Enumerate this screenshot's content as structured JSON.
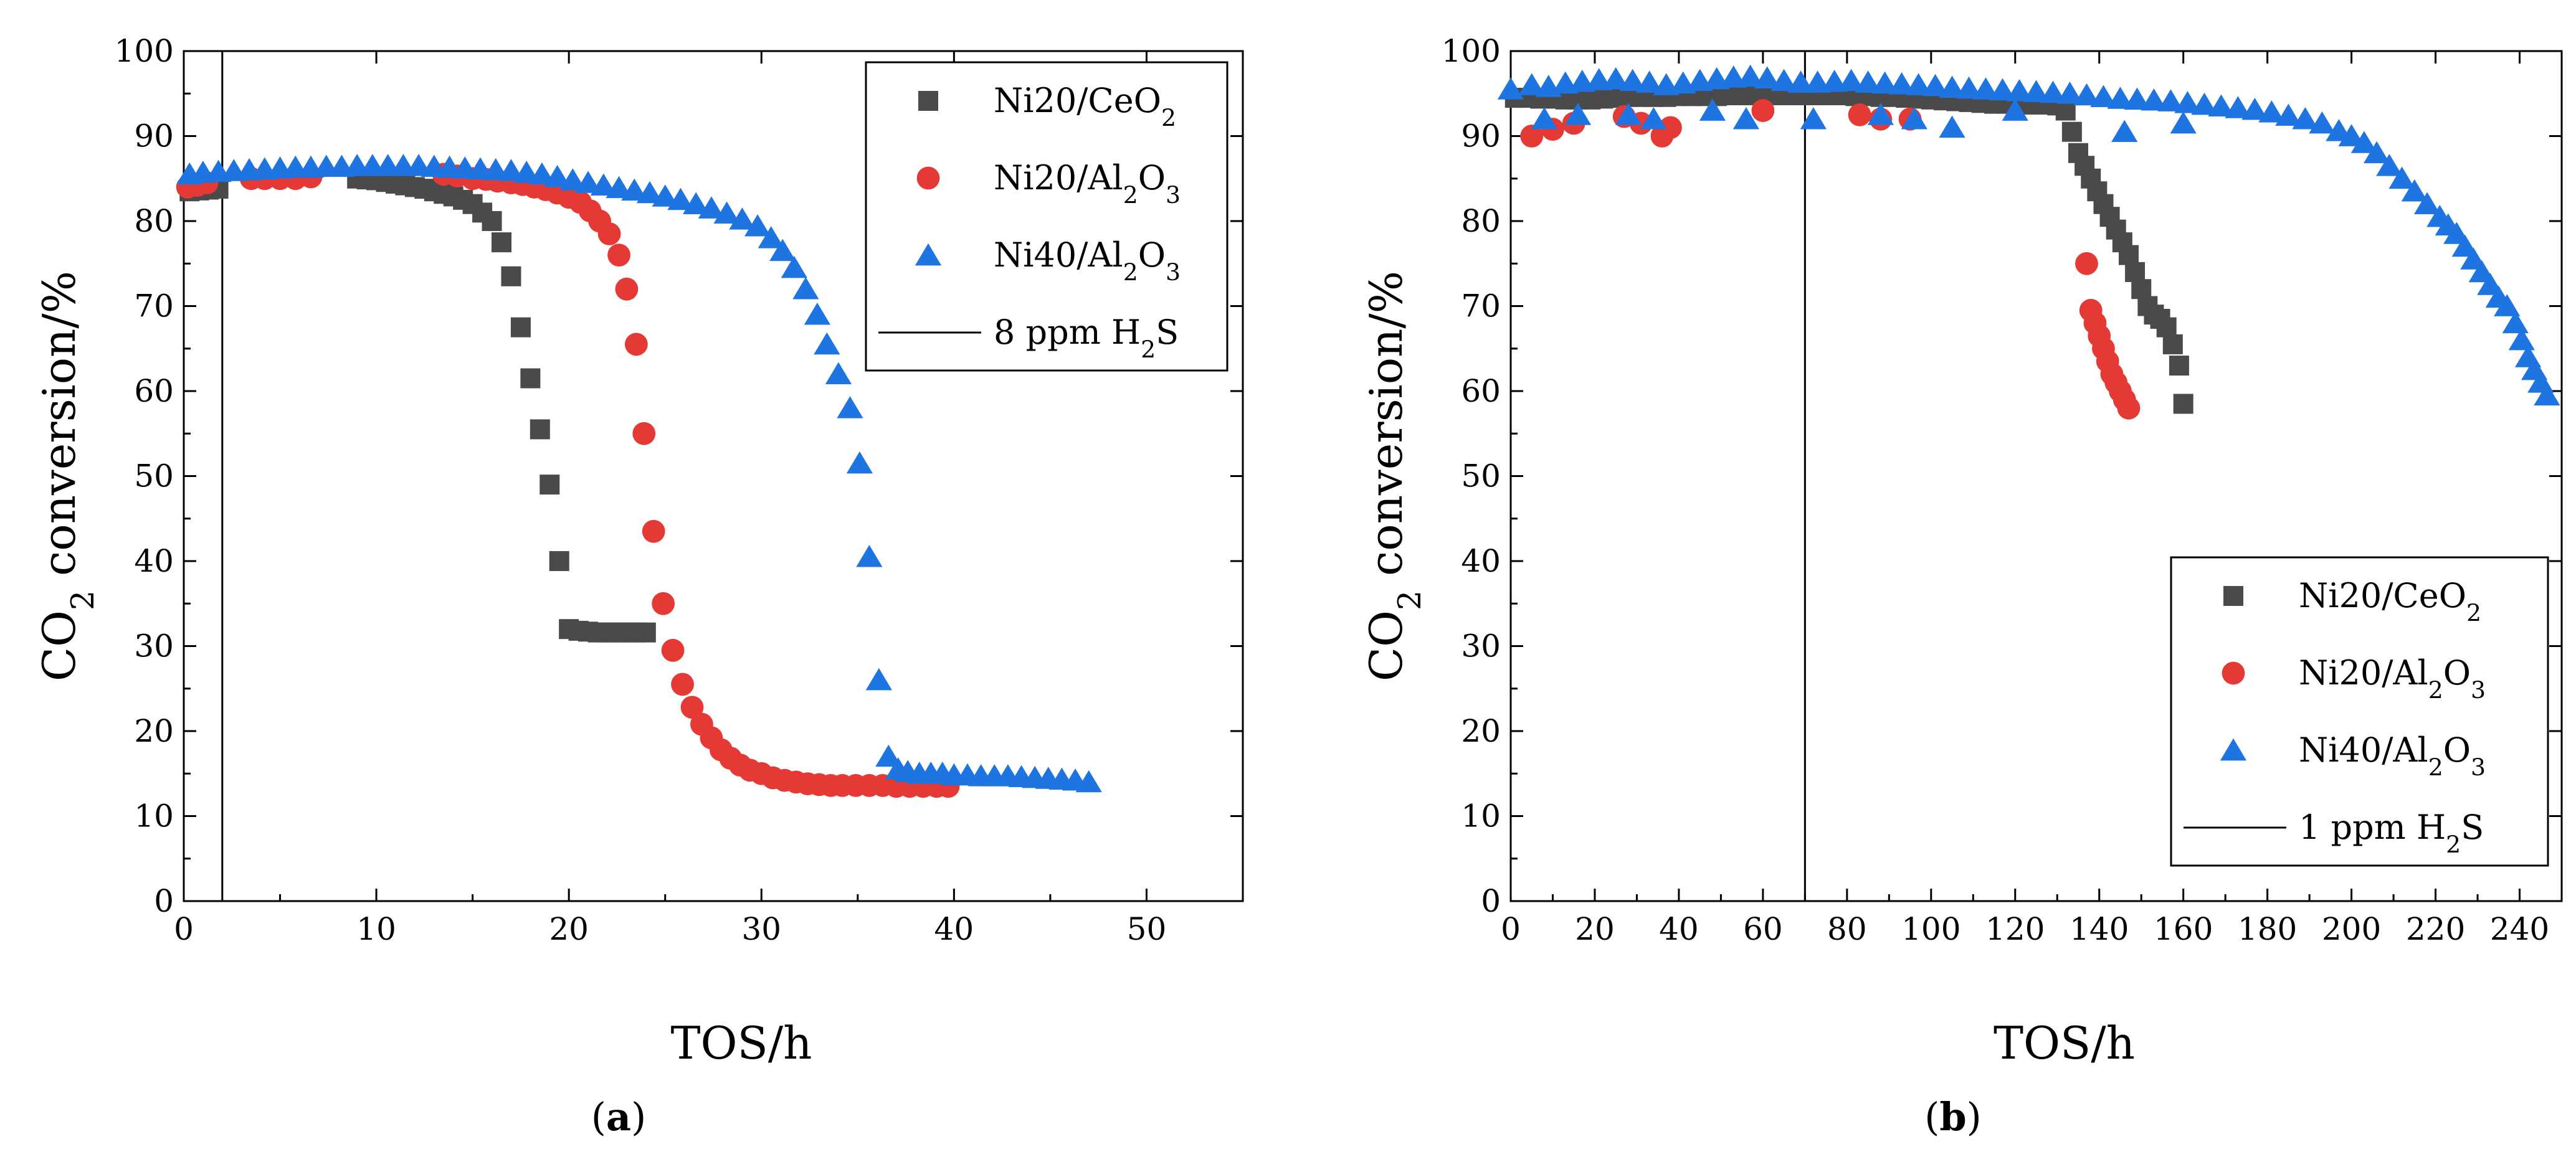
{
  "chart_data": [
    {
      "type": "scatter",
      "panel_label": "a",
      "xlabel": "TOS/h",
      "ylabel": "CO2 conversion/%",
      "ylabel_parts": {
        "prefix": "CO",
        "sub": "2",
        "suffix": " conversion/%"
      },
      "xlim": [
        0,
        55
      ],
      "ylim": [
        0,
        100
      ],
      "x_ticks": [
        0,
        10,
        20,
        30,
        40,
        50
      ],
      "y_ticks": [
        0,
        10,
        20,
        30,
        40,
        50,
        60,
        70,
        80,
        90,
        100
      ],
      "legend_position": "top-right",
      "colors": {
        "Ni20/CeO2": "#4a4a4a",
        "Ni20/Al2O3": "#e53935",
        "Ni40/Al2O3": "#1e74e0"
      },
      "vline": {
        "x": 2,
        "label": "8 ppm H2S",
        "label_parts": {
          "prefix": "8 ppm H",
          "sub": "2",
          "suffix": "S"
        }
      },
      "series": [
        {
          "name": "Ni20/CeO2",
          "marker": "square",
          "label_parts": {
            "prefix": "Ni20/CeO",
            "sub": "2",
            "suffix": ""
          },
          "x": [
            0.3,
            0.8,
            1.3,
            1.8,
            9.0,
            9.5,
            10.0,
            10.5,
            11.0,
            11.5,
            12.0,
            12.5,
            13.0,
            13.5,
            14.0,
            14.5,
            15.0,
            15.5,
            16.0,
            16.5,
            17.0,
            17.5,
            18.0,
            18.5,
            19.0,
            19.5,
            20.0,
            20.5,
            21.0,
            21.5,
            22.0,
            22.5,
            23.0,
            23.5,
            24.0
          ],
          "y": [
            83.5,
            83.6,
            83.7,
            83.8,
            85.0,
            84.9,
            84.8,
            84.6,
            84.4,
            84.2,
            84.0,
            83.8,
            83.5,
            83.2,
            82.9,
            82.5,
            82.0,
            81.0,
            80.0,
            77.5,
            73.5,
            67.5,
            61.5,
            55.5,
            49.0,
            40.0,
            32.0,
            31.8,
            31.7,
            31.6,
            31.6,
            31.6,
            31.6,
            31.6,
            31.6
          ]
        },
        {
          "name": "Ni20/Al2O3",
          "marker": "circle",
          "label_parts": {
            "prefix": "Ni20/Al",
            "sub": "2",
            "suffix": "O",
            "sub2": "3"
          },
          "x": [
            0.2,
            0.7,
            1.2,
            3.5,
            4.2,
            5.0,
            5.8,
            6.6,
            13.5,
            14.2,
            15.0,
            15.7,
            16.3,
            17.0,
            17.6,
            18.2,
            18.8,
            19.4,
            20.0,
            20.6,
            21.1,
            21.6,
            22.1,
            22.6,
            23.0,
            23.5,
            23.9,
            24.4,
            24.9,
            25.4,
            25.9,
            26.4,
            26.9,
            27.4,
            27.9,
            28.4,
            28.9,
            29.4,
            30.0,
            30.6,
            31.2,
            31.8,
            32.4,
            33.0,
            33.6,
            34.2,
            34.9,
            35.6,
            36.3,
            37.0,
            37.7,
            38.4,
            39.1,
            39.7
          ],
          "y": [
            84.0,
            84.2,
            84.5,
            85.0,
            85.0,
            85.0,
            85.0,
            85.2,
            85.5,
            85.3,
            85.0,
            84.9,
            84.7,
            84.5,
            84.3,
            84.0,
            83.7,
            83.3,
            82.8,
            82.2,
            81.2,
            80.0,
            78.5,
            76.0,
            72.0,
            65.5,
            55.0,
            43.5,
            35.0,
            29.5,
            25.5,
            22.8,
            20.8,
            19.2,
            17.8,
            16.8,
            16.0,
            15.4,
            15.0,
            14.5,
            14.2,
            14.0,
            13.8,
            13.7,
            13.6,
            13.6,
            13.6,
            13.6,
            13.6,
            13.5,
            13.5,
            13.5,
            13.5,
            13.5
          ]
        },
        {
          "name": "Ni40/Al2O3",
          "marker": "triangle",
          "label_parts": {
            "prefix": "Ni40/Al",
            "sub": "2",
            "suffix": "O",
            "sub2": "3"
          },
          "x": [
            0.3,
            1.0,
            1.8,
            2.6,
            3.4,
            4.2,
            5.0,
            5.8,
            6.6,
            7.4,
            8.2,
            9.0,
            9.8,
            10.6,
            11.4,
            12.2,
            13.0,
            13.8,
            14.6,
            15.4,
            16.2,
            17.0,
            17.8,
            18.6,
            19.4,
            20.2,
            21.0,
            21.8,
            22.6,
            23.4,
            24.2,
            25.0,
            25.8,
            26.6,
            27.4,
            28.2,
            29.0,
            29.8,
            30.5,
            31.1,
            31.7,
            32.3,
            32.9,
            33.4,
            34.0,
            34.6,
            35.1,
            35.6,
            36.1,
            36.6,
            37.1,
            37.6,
            38.2,
            38.8,
            39.4,
            40.0,
            40.7,
            41.4,
            42.1,
            42.8,
            43.5,
            44.2,
            44.9,
            45.6,
            46.3,
            47.0
          ],
          "y": [
            85.5,
            85.7,
            85.8,
            85.9,
            86.0,
            86.1,
            86.2,
            86.3,
            86.3,
            86.4,
            86.4,
            86.5,
            86.5,
            86.5,
            86.5,
            86.5,
            86.4,
            86.3,
            86.2,
            86.1,
            86.0,
            85.9,
            85.7,
            85.5,
            85.2,
            84.8,
            84.5,
            84.2,
            83.9,
            83.6,
            83.3,
            82.9,
            82.5,
            82.0,
            81.5,
            80.9,
            80.2,
            79.4,
            78.0,
            76.5,
            74.5,
            72.0,
            69.0,
            65.5,
            62.0,
            58.0,
            51.5,
            40.5,
            26.0,
            17.0,
            15.5,
            15.2,
            15.0,
            15.0,
            15.0,
            14.8,
            14.8,
            14.7,
            14.7,
            14.7,
            14.6,
            14.5,
            14.4,
            14.3,
            14.2,
            14.0
          ]
        }
      ]
    },
    {
      "type": "scatter",
      "panel_label": "b",
      "xlabel": "TOS/h",
      "ylabel": "CO2 conversion/%",
      "ylabel_parts": {
        "prefix": "CO",
        "sub": "2",
        "suffix": " conversion/%"
      },
      "xlim": [
        0,
        250
      ],
      "ylim": [
        0,
        100
      ],
      "x_ticks": [
        0,
        20,
        40,
        60,
        80,
        100,
        120,
        140,
        160,
        180,
        200,
        220,
        240
      ],
      "y_ticks": [
        0,
        10,
        20,
        30,
        40,
        50,
        60,
        70,
        80,
        90,
        100
      ],
      "legend_position": "bottom-right",
      "colors": {
        "Ni20/CeO2": "#4a4a4a",
        "Ni20/Al2O3": "#e53935",
        "Ni40/Al2O3": "#1e74e0"
      },
      "vline": {
        "x": 70,
        "label": "1 ppm H2S",
        "label_parts": {
          "prefix": "1 ppm H",
          "sub": "2",
          "suffix": "S"
        }
      },
      "series": [
        {
          "name": "Ni20/CeO2",
          "marker": "square",
          "label_parts": {
            "prefix": "Ni20/CeO",
            "sub": "2",
            "suffix": ""
          },
          "x": [
            1,
            4,
            7,
            10,
            13,
            16,
            19,
            22,
            25,
            28,
            31,
            34,
            37,
            40,
            43,
            46,
            49,
            52,
            55,
            58,
            61,
            64,
            67,
            70,
            73,
            76,
            79,
            82,
            85,
            88,
            91,
            94,
            97,
            100,
            103,
            106,
            109,
            112,
            115,
            118,
            121,
            124,
            127,
            130,
            132,
            133.5,
            135,
            136.5,
            138,
            139.5,
            141,
            142.5,
            144,
            145.5,
            147,
            148.5,
            150,
            151.5,
            153,
            154.5,
            156,
            157.5,
            159,
            160
          ],
          "y": [
            94.5,
            94.5,
            94.4,
            94.4,
            94.3,
            94.3,
            94.3,
            94.4,
            94.5,
            94.6,
            94.6,
            94.6,
            94.6,
            94.7,
            94.7,
            94.7,
            94.7,
            94.8,
            94.8,
            94.8,
            94.8,
            94.8,
            94.8,
            94.8,
            94.8,
            94.8,
            94.8,
            94.7,
            94.7,
            94.6,
            94.6,
            94.5,
            94.4,
            94.3,
            94.2,
            94.1,
            94.0,
            93.9,
            93.8,
            93.8,
            93.8,
            93.7,
            93.7,
            93.6,
            93.0,
            90.5,
            88.0,
            86.5,
            85.0,
            83.5,
            82.0,
            80.5,
            79.0,
            77.5,
            76.0,
            74.0,
            72.0,
            70.0,
            69.0,
            68.5,
            67.5,
            65.5,
            63.0,
            58.5
          ]
        },
        {
          "name": "Ni20/Al2O3",
          "marker": "circle",
          "label_parts": {
            "prefix": "Ni20/Al",
            "sub": "2",
            "suffix": "O",
            "sub2": "3"
          },
          "x": [
            5,
            10,
            15,
            27,
            31,
            36,
            38,
            60,
            83,
            88,
            95,
            137,
            138,
            139,
            140,
            141,
            142,
            143,
            144,
            145,
            146,
            147
          ],
          "y": [
            90.0,
            90.8,
            91.5,
            92.3,
            91.5,
            90.0,
            91.0,
            93.0,
            92.5,
            92.0,
            92.0,
            75.0,
            69.5,
            68.0,
            66.5,
            65.0,
            63.5,
            62.0,
            61.0,
            60.0,
            59.0,
            58.0
          ]
        },
        {
          "name": "Ni40/Al2O3",
          "marker": "triangle",
          "label_parts": {
            "prefix": "Ni40/Al",
            "sub": "2",
            "suffix": "O",
            "sub2": "3"
          },
          "x": [
            0,
            5,
            9,
            13,
            17,
            21,
            25,
            29,
            33,
            37,
            41,
            45,
            49,
            53,
            57,
            61,
            65,
            69,
            73,
            77,
            81,
            85,
            89,
            93,
            97,
            101,
            105,
            109,
            113,
            117,
            121,
            125,
            129,
            133,
            137,
            141,
            145,
            149,
            153,
            157,
            161,
            165,
            169,
            173,
            177,
            181,
            185,
            189,
            193,
            197,
            200,
            203,
            206,
            209,
            212,
            215,
            218,
            221,
            223,
            225,
            227,
            229,
            231,
            233,
            235,
            237,
            239,
            240.5,
            242,
            243.5,
            245,
            246.5,
            8,
            16,
            28,
            34,
            48,
            56,
            72,
            88,
            96,
            105,
            120,
            146,
            160
          ],
          "y": [
            95.5,
            96.0,
            95.8,
            96.2,
            96.4,
            96.6,
            96.7,
            96.5,
            96.3,
            96.0,
            96.2,
            96.5,
            96.7,
            96.9,
            97.0,
            96.8,
            96.5,
            96.3,
            96.3,
            96.4,
            96.5,
            96.3,
            96.2,
            96.1,
            96.0,
            95.9,
            95.7,
            95.6,
            95.5,
            95.4,
            95.3,
            95.2,
            95.1,
            95.0,
            94.8,
            94.6,
            94.4,
            94.3,
            94.2,
            94.1,
            93.9,
            93.7,
            93.5,
            93.3,
            93.1,
            92.8,
            92.4,
            92.0,
            91.5,
            90.6,
            90.0,
            89.2,
            88.0,
            86.5,
            85.0,
            83.5,
            82.0,
            80.5,
            79.5,
            78.5,
            77.0,
            75.5,
            74.0,
            72.5,
            71.0,
            70.0,
            68.0,
            66.0,
            64.0,
            62.5,
            61.0,
            59.5,
            92.0,
            92.5,
            92.5,
            92.0,
            93.0,
            92.0,
            92.0,
            92.5,
            92.0,
            91.0,
            93.0,
            90.5,
            91.5
          ]
        }
      ]
    }
  ]
}
